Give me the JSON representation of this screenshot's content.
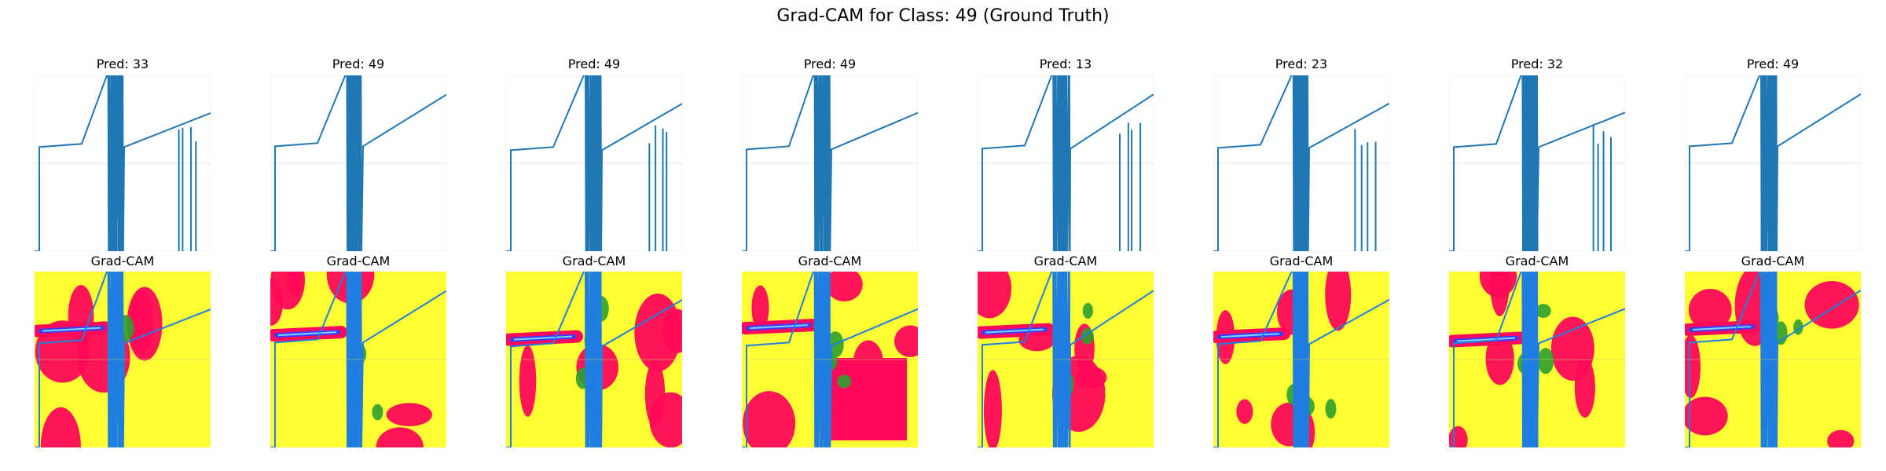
{
  "figure": {
    "title": "Grad-CAM for Class: 49 (Ground Truth)"
  },
  "colors": {
    "signal": "#1f77b4",
    "cam_signal": "#1f7fe0",
    "heat_low": "#ffff33",
    "heat_mid": "#ff0a5a",
    "heat_green": "#2ca02c",
    "heat_blue": "#3b3bff",
    "heat_cyan": "#7fd3ff"
  },
  "chart_data": {
    "type": "line",
    "cam_title": "Grad-CAM",
    "panels": [
      {
        "pred_label": "Pred: 33"
      },
      {
        "pred_label": "Pred: 49"
      },
      {
        "pred_label": "Pred: 49"
      },
      {
        "pred_label": "Pred: 49"
      },
      {
        "pred_label": "Pred: 13"
      },
      {
        "pred_label": "Pred: 23"
      },
      {
        "pred_label": "Pred: 32"
      },
      {
        "pred_label": "Pred: 49"
      }
    ]
  }
}
